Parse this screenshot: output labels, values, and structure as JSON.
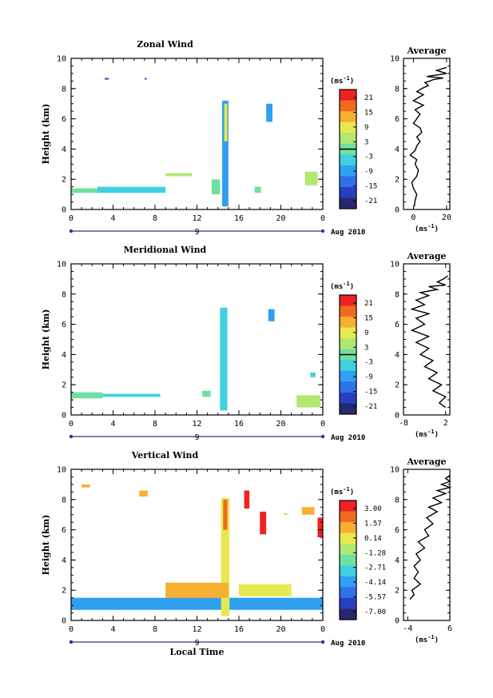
{
  "panels": [
    {
      "title": "Zonal Wind",
      "ylabel": "Height (km)",
      "yticks": [
        "0",
        "2",
        "4",
        "6",
        "8",
        "10"
      ],
      "xticks": [
        "0",
        "4",
        "8",
        "12",
        "16",
        "20",
        "0"
      ],
      "day_label": "9",
      "date_label": "Aug 2010",
      "cb_unit": "(ms",
      "cb_exp": "-1",
      "cb_unit_close": ")",
      "cb_ticks": [
        "21",
        "15",
        "9",
        "3",
        "-3",
        "-9",
        "-15",
        "-21"
      ],
      "avg_title": "Average",
      "avg_xticks": [
        "0",
        "20"
      ],
      "avg_yticks": [
        "0",
        "2",
        "4",
        "6",
        "8",
        "10"
      ],
      "avg_xlabel_pre": "(ms",
      "avg_xlabel_exp": "-1",
      "avg_xlabel_post": ")"
    },
    {
      "title": "Meridional Wind",
      "ylabel": "Height (km)",
      "yticks": [
        "0",
        "2",
        "4",
        "6",
        "8",
        "10"
      ],
      "xticks": [
        "0",
        "4",
        "8",
        "12",
        "16",
        "20",
        "0"
      ],
      "day_label": "9",
      "date_label": "Aug 2010",
      "cb_unit": "(ms",
      "cb_exp": "-1",
      "cb_unit_close": ")",
      "cb_ticks": [
        "21",
        "15",
        "9",
        "3",
        "-3",
        "-9",
        "-15",
        "-21"
      ],
      "avg_title": "Average",
      "avg_xticks": [
        "-8",
        "2"
      ],
      "avg_yticks": [
        "0",
        "2",
        "4",
        "6",
        "8",
        "10"
      ],
      "avg_xlabel_pre": "(ms",
      "avg_xlabel_exp": "-1",
      "avg_xlabel_post": ")"
    },
    {
      "title": "Vertical Wind",
      "ylabel": "Height (km)",
      "yticks": [
        "0",
        "2",
        "4",
        "6",
        "8",
        "10"
      ],
      "xticks": [
        "0",
        "4",
        "8",
        "12",
        "16",
        "20",
        "0"
      ],
      "day_label": "9",
      "date_label": "Aug 2010",
      "xlabel": "Local Time",
      "cb_unit": "(ms",
      "cb_exp": "-1",
      "cb_unit_close": ")",
      "cb_ticks": [
        "3.00",
        "1.57",
        "0.14",
        "-1.28",
        "-2.71",
        "-4.14",
        "-5.57",
        "-7.00"
      ],
      "avg_title": "Average",
      "avg_xticks": [
        "-4",
        "6"
      ],
      "avg_yticks": [
        "0",
        "2",
        "4",
        "6",
        "8",
        "10"
      ],
      "avg_xlabel_pre": "(ms",
      "avg_xlabel_exp": "-1",
      "avg_xlabel_post": ")"
    }
  ],
  "colorbar_colors": [
    "#ee2222",
    "#f26a22",
    "#f6b030",
    "#e8e850",
    "#b0e870",
    "#70e0a0",
    "#40d0e0",
    "#30a0f0",
    "#3070e8",
    "#2840c0",
    "#282870"
  ],
  "chart_data": [
    {
      "type": "heatmap",
      "title": "Zonal Wind",
      "xlabel": "",
      "ylabel": "Height (km)",
      "xlim": [
        0,
        24
      ],
      "ylim": [
        0,
        10
      ],
      "x_unit": "Local Time (h)",
      "colorbar_range": [
        -21,
        21
      ],
      "patches": [
        {
          "x": 14.4,
          "y": 0.2,
          "w": 0.6,
          "h": 7.0,
          "value": -6
        },
        {
          "x": 14.6,
          "y": 4.5,
          "w": 0.3,
          "h": 2.5,
          "value": 6
        },
        {
          "x": 0.0,
          "y": 1.1,
          "w": 2.5,
          "h": 0.3,
          "value": 0
        },
        {
          "x": 2.5,
          "y": 1.1,
          "w": 6.5,
          "h": 0.4,
          "value": -2
        },
        {
          "x": 9.0,
          "y": 2.2,
          "w": 2.5,
          "h": 0.2,
          "value": 3
        },
        {
          "x": 13.4,
          "y": 1.0,
          "w": 0.8,
          "h": 1.0,
          "value": 0
        },
        {
          "x": 18.6,
          "y": 5.8,
          "w": 0.6,
          "h": 1.2,
          "value": -9
        },
        {
          "x": 17.5,
          "y": 1.1,
          "w": 0.6,
          "h": 0.4,
          "value": 0
        },
        {
          "x": 22.3,
          "y": 1.6,
          "w": 1.2,
          "h": 0.9,
          "value": 3
        },
        {
          "x": 3.2,
          "y": 8.6,
          "w": 0.4,
          "h": 0.1,
          "value": -15
        },
        {
          "x": 7.0,
          "y": 8.6,
          "w": 0.2,
          "h": 0.1,
          "value": -15
        }
      ]
    },
    {
      "type": "heatmap",
      "title": "Meridional Wind",
      "xlabel": "",
      "ylabel": "Height (km)",
      "xlim": [
        0,
        24
      ],
      "ylim": [
        0,
        10
      ],
      "x_unit": "Local Time (h)",
      "colorbar_range": [
        -21,
        21
      ],
      "patches": [
        {
          "x": 14.2,
          "y": 0.3,
          "w": 0.7,
          "h": 6.8,
          "value": -5
        },
        {
          "x": 0.0,
          "y": 1.1,
          "w": 3.0,
          "h": 0.4,
          "value": 0
        },
        {
          "x": 3.0,
          "y": 1.2,
          "w": 5.5,
          "h": 0.2,
          "value": -2
        },
        {
          "x": 12.5,
          "y": 1.2,
          "w": 0.8,
          "h": 0.4,
          "value": 0
        },
        {
          "x": 18.8,
          "y": 6.2,
          "w": 0.6,
          "h": 0.8,
          "value": -9
        },
        {
          "x": 21.5,
          "y": 0.5,
          "w": 2.3,
          "h": 0.8,
          "value": 3
        },
        {
          "x": 22.8,
          "y": 2.5,
          "w": 0.5,
          "h": 0.3,
          "value": -3
        }
      ]
    },
    {
      "type": "heatmap",
      "title": "Vertical Wind",
      "xlabel": "Local Time",
      "ylabel": "Height (km)",
      "xlim": [
        0,
        24
      ],
      "ylim": [
        0,
        10
      ],
      "x_unit": "Local Time (h)",
      "colorbar_range": [
        -7.0,
        3.0
      ],
      "patches": [
        {
          "x": 0.0,
          "y": 0.7,
          "w": 24.0,
          "h": 0.8,
          "value": -3.5
        },
        {
          "x": 14.3,
          "y": 0.3,
          "w": 0.8,
          "h": 7.8,
          "value": 0.2
        },
        {
          "x": 14.5,
          "y": 6.0,
          "w": 0.4,
          "h": 2.0,
          "value": 1.6
        },
        {
          "x": 16.5,
          "y": 7.4,
          "w": 0.5,
          "h": 1.2,
          "value": 3.0
        },
        {
          "x": 18.0,
          "y": 5.7,
          "w": 0.6,
          "h": 1.5,
          "value": 3.0
        },
        {
          "x": 23.5,
          "y": 5.5,
          "w": 0.5,
          "h": 1.3,
          "value": 3.0
        },
        {
          "x": 9.0,
          "y": 1.5,
          "w": 6.0,
          "h": 1.0,
          "value": 0.5
        },
        {
          "x": 16.0,
          "y": 1.6,
          "w": 5.0,
          "h": 0.8,
          "value": -0.5
        },
        {
          "x": 1.0,
          "y": 8.8,
          "w": 0.8,
          "h": 0.2,
          "value": 0.5
        },
        {
          "x": 6.5,
          "y": 8.2,
          "w": 0.8,
          "h": 0.4,
          "value": 0.5
        },
        {
          "x": 22.0,
          "y": 7.0,
          "w": 1.2,
          "h": 0.5,
          "value": 0.5
        },
        {
          "x": 20.3,
          "y": 7.0,
          "w": 0.3,
          "h": 0.1,
          "value": 1.0
        }
      ]
    },
    {
      "type": "line",
      "title": "Average",
      "panel": "Zonal Wind",
      "xlabel": "(ms-1)",
      "ylabel": "",
      "xlim": [
        -6,
        22
      ],
      "ylim": [
        0,
        10
      ],
      "xticks": [
        0,
        20
      ],
      "x": [
        0.5,
        1,
        2,
        0,
        -1,
        2,
        3,
        1,
        2,
        -2,
        1,
        2,
        4,
        2,
        5,
        4,
        0,
        2,
        4,
        1,
        6,
        0,
        3,
        6,
        2,
        5,
        9,
        7,
        10,
        12,
        18,
        8,
        20,
        14,
        20
      ],
      "y": [
        0.2,
        0.6,
        1.0,
        1.4,
        1.8,
        2.2,
        2.6,
        3.0,
        3.3,
        3.6,
        3.9,
        4.2,
        4.5,
        4.8,
        5.1,
        5.4,
        5.7,
        6.0,
        6.3,
        6.6,
        6.9,
        7.2,
        7.4,
        7.6,
        7.8,
        8.0,
        8.2,
        8.4,
        8.5,
        8.6,
        8.7,
        8.8,
        9.0,
        9.2,
        9.4
      ]
    },
    {
      "type": "line",
      "title": "Average",
      "panel": "Meridional Wind",
      "xlabel": "(ms-1)",
      "ylabel": "",
      "xlim": [
        -8,
        3
      ],
      "ylim": [
        0,
        10
      ],
      "xticks": [
        -8,
        2
      ],
      "x": [
        2,
        0.5,
        2,
        -1,
        1,
        -2,
        0,
        -3,
        -1,
        -4,
        -2,
        -5,
        -2,
        -6,
        -3,
        -5,
        -2,
        -6,
        -3,
        -5,
        -2,
        -4,
        0,
        -2,
        2,
        0,
        1.5,
        2.5
      ],
      "y": [
        0.5,
        0.8,
        1.2,
        1.6,
        2.0,
        2.4,
        2.8,
        3.2,
        3.6,
        4.0,
        4.4,
        4.8,
        5.2,
        5.6,
        6.0,
        6.4,
        6.7,
        7.0,
        7.3,
        7.6,
        7.9,
        8.1,
        8.3,
        8.5,
        8.6,
        8.8,
        9.0,
        9.2
      ]
    },
    {
      "type": "line",
      "title": "Average",
      "panel": "Vertical Wind",
      "xlabel": "(ms-1)",
      "ylabel": "",
      "xlim": [
        -5,
        6
      ],
      "ylim": [
        0,
        10
      ],
      "xticks": [
        -4,
        6
      ],
      "x": [
        -3.5,
        -2.5,
        -3,
        -1,
        -2.5,
        -1.5,
        -2.5,
        -1,
        -2,
        0,
        -1.5,
        1,
        0,
        2,
        0.5,
        3,
        1,
        4,
        2,
        5,
        3,
        6,
        4,
        6,
        5,
        6
      ],
      "y": [
        1.4,
        1.7,
        2.0,
        2.4,
        2.8,
        3.2,
        3.6,
        4.0,
        4.4,
        4.8,
        5.2,
        5.6,
        6.0,
        6.4,
        6.8,
        7.2,
        7.5,
        7.8,
        8.1,
        8.4,
        8.6,
        8.8,
        9.0,
        9.2,
        9.4,
        9.6
      ]
    }
  ]
}
